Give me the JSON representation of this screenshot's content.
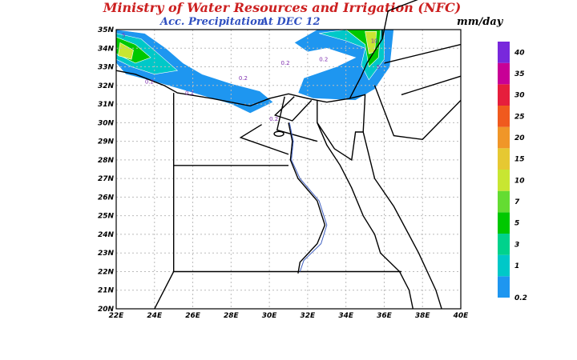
{
  "header": {
    "title": "Ministry of Water Resources and Irrigation (NFC)",
    "subtitle": "Acc. Precipitation",
    "date": "At DEC 12",
    "units": "mm/day"
  },
  "map": {
    "lat_labels": [
      "35N",
      "34N",
      "33N",
      "32N",
      "31N",
      "30N",
      "29N",
      "28N",
      "27N",
      "26N",
      "25N",
      "24N",
      "23N",
      "22N",
      "21N",
      "20N"
    ],
    "lon_labels": [
      "22E",
      "24E",
      "26E",
      "28E",
      "30E",
      "32E",
      "34E",
      "36E",
      "38E",
      "40E"
    ],
    "contour_labels": [
      "5",
      "0.2",
      "0.2",
      "0.2",
      "0.2",
      "0.2",
      "0.2",
      "10",
      "5"
    ]
  },
  "colorbar": {
    "labels": [
      "0.2",
      "1",
      "3",
      "5",
      "7",
      "10",
      "15",
      "20",
      "25",
      "30",
      "35",
      "40"
    ],
    "colors": [
      "#1e96f0",
      "#00c8c8",
      "#00d28c",
      "#00c800",
      "#64dc32",
      "#c8e632",
      "#e6c832",
      "#f09628",
      "#f05a1e",
      "#e61e3c",
      "#c80096",
      "#7828dc"
    ]
  }
}
